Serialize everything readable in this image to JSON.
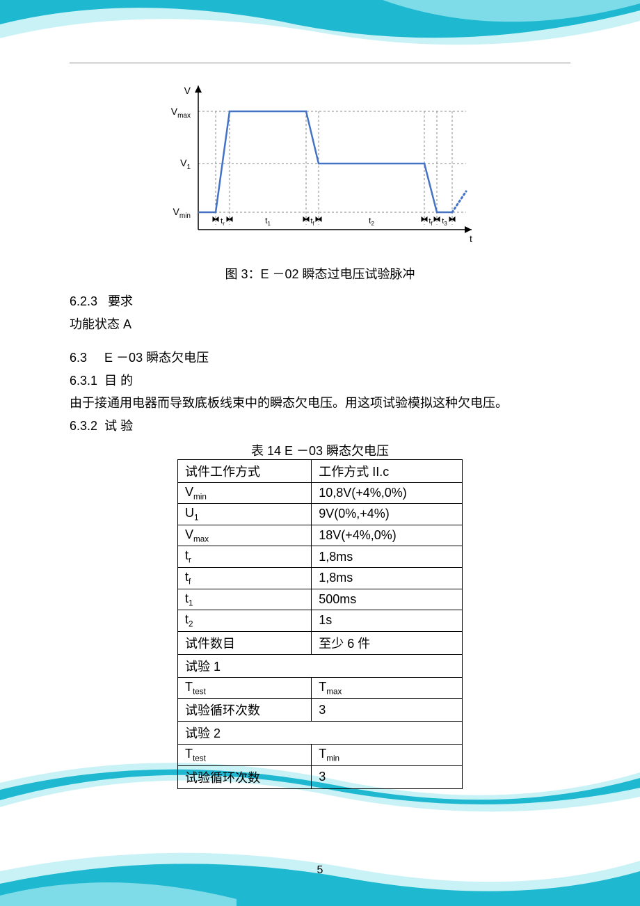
{
  "page_number": "5",
  "figure": {
    "caption": "图 3：E －02 瞬态过电压试验脉冲",
    "axis_y_label": "V",
    "axis_x_label": "t",
    "y_ticks": [
      "V",
      "Vmax",
      "V1",
      "Vmin"
    ],
    "x_interval_labels": [
      "tr",
      "t1",
      "tf",
      "t2",
      "tf",
      "t3"
    ],
    "line_color": "#4472c4",
    "line_width": 2,
    "grid_color": "#888",
    "axis_color": "#000"
  },
  "text": {
    "s623_num": "6.2.3",
    "s623_title": "要求",
    "s623_body": "功能状态 A",
    "s63_num": "6.3",
    "s63_title": "E －03 瞬态欠电压",
    "s631_num": "6.3.1",
    "s631_title": "目 的",
    "s631_body": "由于接通用电器而导致底板线束中的瞬态欠电压。用这项试验模拟这种欠电压。",
    "s632_num": "6.3.2",
    "s632_title": "试 验"
  },
  "table": {
    "caption": "表 14 E －03 瞬态欠电压",
    "rows": [
      {
        "k": "试件工作方式",
        "v": "工作方式 II.c"
      },
      {
        "k": "V<sub>min</sub>",
        "v": "10,8V(+4%,0%)"
      },
      {
        "k": "U<sub>1</sub>",
        "v": "9V(0%,+4%)"
      },
      {
        "k": "V<sub>max</sub>",
        "v": "18V(+4%,0%)"
      },
      {
        "k": "t<sub>r</sub>",
        "v": "1,8ms"
      },
      {
        "k": "t<sub>f</sub>",
        "v": "1,8ms"
      },
      {
        "k": "t<sub>1</sub>",
        "v": "500ms"
      },
      {
        "k": "t<sub>2</sub>",
        "v": "1s"
      },
      {
        "k": "试件数目",
        "v": "至少 6 件"
      },
      {
        "span": "试验 1"
      },
      {
        "k": "T<sub>test</sub>",
        "v": "T<sub>max</sub>"
      },
      {
        "k": "试验循环次数",
        "v": "3"
      },
      {
        "span": "试验 2"
      },
      {
        "k": "T<sub>test</sub>",
        "v": "T<sub>min</sub>"
      },
      {
        "k": "试验循环次数",
        "v": "3"
      }
    ]
  },
  "swoosh_colors": {
    "dark": "#1fb8d1",
    "light": "#c8f2f6",
    "mid": "#7edce8"
  }
}
